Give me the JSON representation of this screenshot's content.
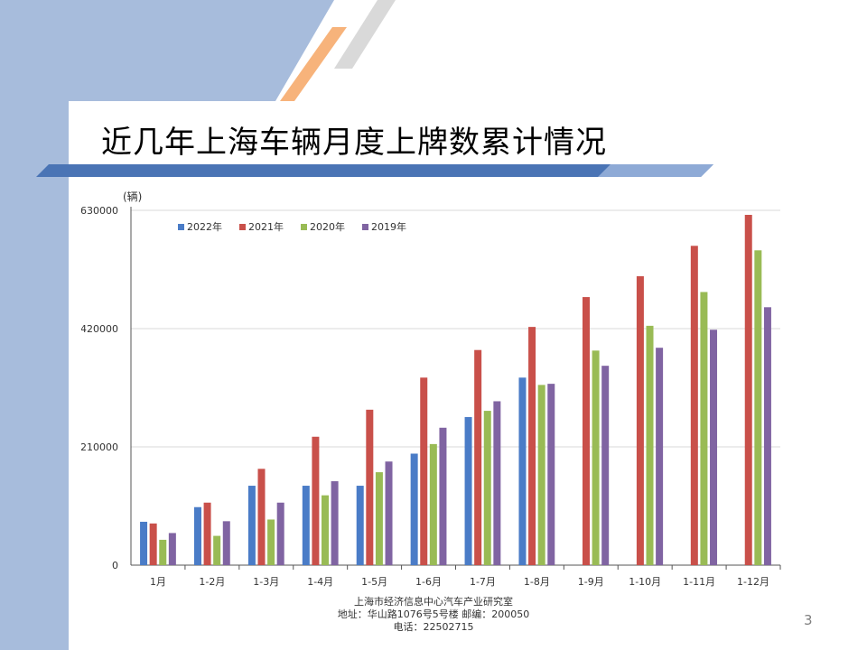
{
  "slide": {
    "title": "近几年上海车辆月度上牌数累计情况",
    "page_number": "3",
    "footer": {
      "line1": "上海市经济信息中心汽车产业研究室",
      "line2": "地址：华山路1076号5号楼   邮编：200050",
      "line3": "电话：22502715"
    },
    "colors": {
      "left_band": "#a7bcdc",
      "accent_orange": "#f7b37b",
      "accent_gray": "#d9d9d9",
      "title_bar": "#4a74b5"
    }
  },
  "chart_data": {
    "type": "bar",
    "ylabel": "(辆)",
    "ylim": [
      0,
      630000
    ],
    "yticks": [
      0,
      210000,
      420000,
      630000
    ],
    "ytick_labels": [
      "0",
      "210000",
      "420000",
      "630000"
    ],
    "grid": true,
    "legend_position": "top-left",
    "categories": [
      "1月",
      "1-2月",
      "1-3月",
      "1-4月",
      "1-5月",
      "1-6月",
      "1-7月",
      "1-8月",
      "1-9月",
      "1-10月",
      "1-11月",
      "1-12月"
    ],
    "series": [
      {
        "name": "2022年",
        "color": "#4a7cc7",
        "values": [
          77000,
          103000,
          141000,
          141000,
          141000,
          198000,
          263000,
          333000,
          null,
          null,
          null,
          null
        ]
      },
      {
        "name": "2021年",
        "color": "#c9504a",
        "values": [
          74000,
          111000,
          171000,
          228000,
          276000,
          333000,
          382000,
          423000,
          476000,
          513000,
          567000,
          622000
        ]
      },
      {
        "name": "2020年",
        "color": "#99bb55",
        "values": [
          45000,
          52000,
          81000,
          124000,
          165000,
          215000,
          274000,
          320000,
          381000,
          425000,
          485000,
          559000
        ]
      },
      {
        "name": "2019年",
        "color": "#8064a2",
        "values": [
          57000,
          78000,
          111000,
          149000,
          184000,
          244000,
          291000,
          322000,
          354000,
          386000,
          418000,
          458000
        ]
      }
    ]
  }
}
